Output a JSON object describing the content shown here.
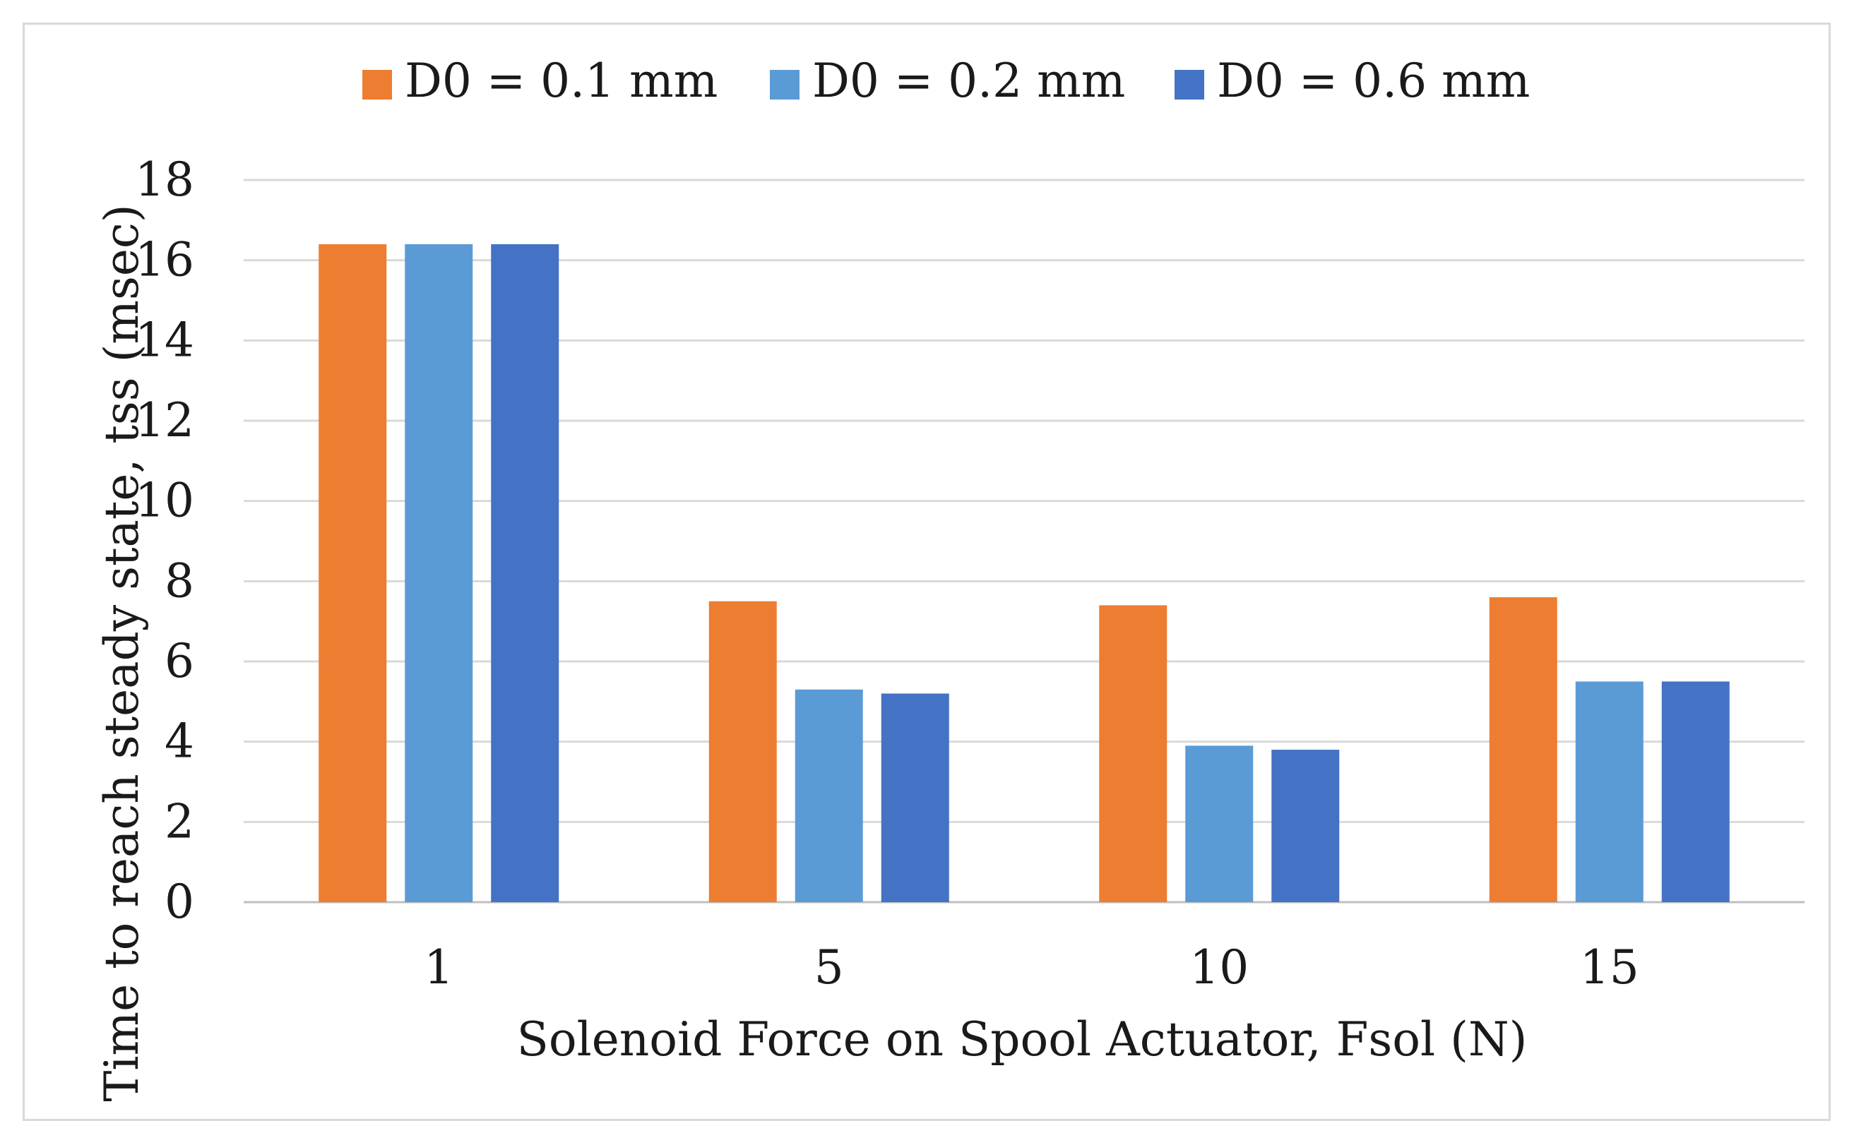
{
  "chart_data": {
    "type": "bar",
    "title": "",
    "xlabel": "Solenoid Force on Spool Actuator, Fsol (N)",
    "ylabel": "Time to reach steady state, tss (msec)",
    "categories": [
      "1",
      "5",
      "10",
      "15"
    ],
    "ylim": [
      0,
      18
    ],
    "yticks": [
      "0",
      "2",
      "4",
      "6",
      "8",
      "10",
      "12",
      "14",
      "16",
      "18"
    ],
    "grid": true,
    "legend_position": "top-center",
    "series": [
      {
        "name": "D0 = 0.1 mm",
        "color": "#ED7D31",
        "values": [
          16.4,
          7.5,
          7.4,
          7.6
        ]
      },
      {
        "name": "D0 = 0.2 mm",
        "color": "#5B9BD5",
        "values": [
          16.4,
          5.3,
          3.9,
          5.5
        ]
      },
      {
        "name": "D0 = 0.6 mm",
        "color": "#4472C4",
        "values": [
          16.4,
          5.2,
          3.8,
          5.5
        ]
      }
    ]
  }
}
